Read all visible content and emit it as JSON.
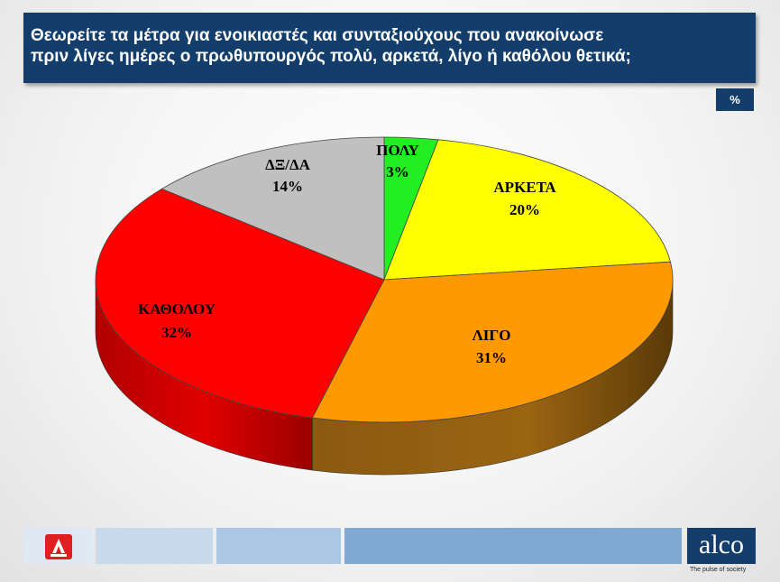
{
  "header": {
    "title": "Θεωρείτε τα μέτρα για ενοικιαστές και συνταξιούχους  που ανακοίνωσε\nπριν λίγες ημέρες ο πρωθυπουργός πολύ, αρκετά, λίγο ή καθόλου θετικά;",
    "unit": "%"
  },
  "chart_data": {
    "type": "pie",
    "start_angle_deg": 0,
    "direction": "clockwise",
    "slices": [
      {
        "label": "ΠΟΛΥ",
        "value": 3,
        "display": "3%",
        "color": "#22ee22"
      },
      {
        "label": "ΑΡΚΕΤΑ",
        "value": 20,
        "display": "20%",
        "color": "#ffff00"
      },
      {
        "label": "ΛΙΓΟ",
        "value": 31,
        "display": "31%",
        "color": "#ff9900"
      },
      {
        "label": "ΚΑΘΟΛΟΥ",
        "value": 32,
        "display": "32%",
        "color": "#ff0000"
      },
      {
        "label": "ΔΞ/ΔΑ",
        "value": 14,
        "display": "14%",
        "color": "#c0c0c0"
      }
    ]
  },
  "footer": {
    "logo_text": "alco",
    "tagline": "The pulse of society",
    "left_logo_icon": "alpha-news-logo"
  }
}
